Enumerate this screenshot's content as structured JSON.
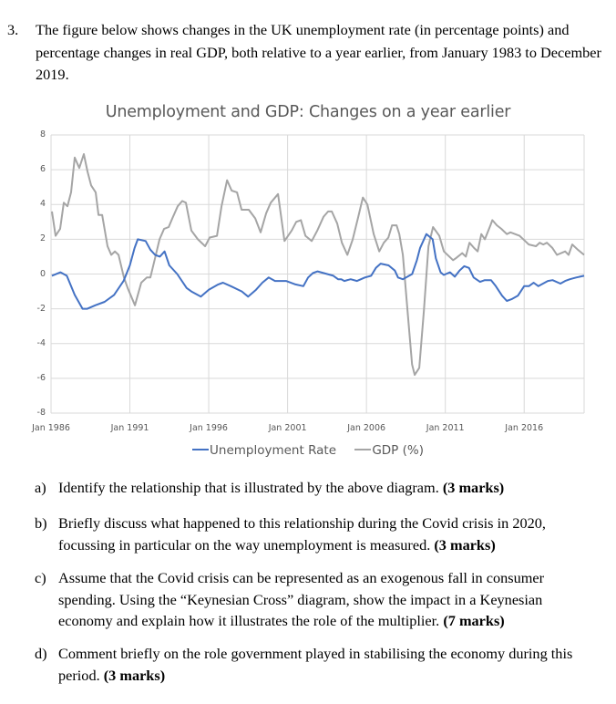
{
  "question": {
    "number": "3.",
    "intro": "The figure below shows changes in the UK unemployment rate (in percentage points) and percentage changes in real GDP, both relative to a year earlier, from January 1983 to December 2019."
  },
  "subquestions": [
    {
      "label": "a)",
      "text": "Identify the relationship that is illustrated by the above diagram.",
      "marks": "(3 marks)"
    },
    {
      "label": "b)",
      "text": "Briefly discuss what happened to this relationship during the Covid crisis in 2020, focussing in particular on the way unemployment is measured.",
      "marks": "(3 marks)"
    },
    {
      "label": "c)",
      "text": "Assume that the Covid crisis can be represented as an exogenous fall in consumer spending. Using the “Keynesian Cross” diagram, show the impact in a Keynesian economy and explain how it illustrates the role of the multiplier.",
      "marks": "(7 marks)"
    },
    {
      "label": "d)",
      "text": "Comment briefly on the role government played in stabilising the economy during this period.",
      "marks": "(3 marks)"
    }
  ],
  "chart_data": {
    "type": "line",
    "title": "Unemployment and GDP: Changes on a year earlier",
    "xlabel": "",
    "ylabel": "",
    "xlim": [
      1986.0,
      2019.8
    ],
    "ylim": [
      -8,
      8
    ],
    "yticks": [
      8,
      6,
      4,
      2,
      0,
      -2,
      -4,
      -6,
      -8
    ],
    "xticks": [
      {
        "value": 1986,
        "label": "Jan 1986"
      },
      {
        "value": 1991,
        "label": "Jan 1991"
      },
      {
        "value": 1996,
        "label": "Jan 1996"
      },
      {
        "value": 2001,
        "label": "Jan 2001"
      },
      {
        "value": 2006,
        "label": "Jan 2006"
      },
      {
        "value": 2011,
        "label": "Jan 2011"
      },
      {
        "value": 2016,
        "label": "Jan 2016"
      }
    ],
    "grid": true,
    "legend_position": "bottom",
    "series": [
      {
        "name": "Unemployment Rate",
        "color": "#4472C4",
        "x": [
          1986.05,
          1986.6,
          1987.0,
          1987.5,
          1988.0,
          1988.3,
          1988.8,
          1989.4,
          1990.0,
          1990.6,
          1991.0,
          1991.3,
          1991.5,
          1992.0,
          1992.3,
          1992.6,
          1992.9,
          1993.2,
          1993.5,
          1994.0,
          1994.6,
          1994.9,
          1995.5,
          1996.0,
          1996.6,
          1996.9,
          1997.4,
          1998.1,
          1998.5,
          1999.0,
          1999.4,
          1999.8,
          2000.2,
          2000.9,
          2001.5,
          2002.0,
          2002.3,
          2002.6,
          2002.9,
          2003.3,
          2003.9,
          2004.2,
          2004.4,
          2004.6,
          2005.0,
          2005.4,
          2005.9,
          2006.3,
          2006.6,
          2006.9,
          2007.4,
          2007.8,
          2008.0,
          2008.3,
          2008.6,
          2008.9,
          2009.2,
          2009.4,
          2009.8,
          2010.2,
          2010.4,
          2010.7,
          2010.9,
          2011.3,
          2011.6,
          2011.9,
          2012.2,
          2012.5,
          2012.8,
          2013.2,
          2013.5,
          2013.9,
          2014.2,
          2014.6,
          2014.9,
          2015.2,
          2015.6,
          2016.0,
          2016.3,
          2016.6,
          2016.9,
          2017.5,
          2017.8,
          2018.3,
          2018.6,
          2018.9,
          2019.3,
          2019.8
        ],
        "values": [
          -0.1,
          0.1,
          -0.1,
          -1.2,
          -2.0,
          -2.0,
          -1.8,
          -1.6,
          -1.2,
          -0.4,
          0.5,
          1.5,
          2.0,
          1.9,
          1.4,
          1.1,
          1.0,
          1.3,
          0.5,
          0.0,
          -0.8,
          -1.0,
          -1.3,
          -0.9,
          -0.6,
          -0.5,
          -0.7,
          -1.0,
          -1.3,
          -0.9,
          -0.5,
          -0.2,
          -0.4,
          -0.4,
          -0.6,
          -0.7,
          -0.2,
          0.05,
          0.15,
          0.05,
          -0.1,
          -0.3,
          -0.3,
          -0.4,
          -0.3,
          -0.4,
          -0.2,
          -0.1,
          0.35,
          0.6,
          0.5,
          0.2,
          -0.2,
          -0.3,
          -0.15,
          0.0,
          0.8,
          1.5,
          2.3,
          2.0,
          0.9,
          0.1,
          -0.05,
          0.1,
          -0.15,
          0.2,
          0.45,
          0.35,
          -0.2,
          -0.45,
          -0.35,
          -0.35,
          -0.7,
          -1.25,
          -1.55,
          -1.45,
          -1.25,
          -0.7,
          -0.7,
          -0.5,
          -0.7,
          -0.4,
          -0.35,
          -0.55,
          -0.4,
          -0.3,
          -0.2,
          -0.1
        ]
      },
      {
        "name": "GDP (%)",
        "color": "#A5A5A5",
        "x": [
          1986.06,
          1986.29,
          1986.58,
          1986.81,
          1987.04,
          1987.27,
          1987.5,
          1987.79,
          1988.08,
          1988.31,
          1988.54,
          1988.83,
          1989.01,
          1989.24,
          1989.58,
          1989.82,
          1990.05,
          1990.28,
          1990.62,
          1990.86,
          1991.32,
          1991.72,
          1992.07,
          1992.3,
          1992.59,
          1992.88,
          1993.17,
          1993.46,
          1993.69,
          1994.03,
          1994.32,
          1994.55,
          1994.9,
          1995.31,
          1995.77,
          1996.06,
          1996.52,
          1996.81,
          1997.16,
          1997.45,
          1997.79,
          1998.08,
          1998.54,
          1998.95,
          1999.29,
          1999.64,
          1999.93,
          2000.39,
          2000.8,
          2001.26,
          2001.55,
          2001.84,
          2002.13,
          2002.53,
          2002.88,
          2003.28,
          2003.57,
          2003.8,
          2004.15,
          2004.44,
          2004.79,
          2005.13,
          2005.48,
          2005.77,
          2006.06,
          2006.46,
          2006.81,
          2007.1,
          2007.39,
          2007.62,
          2007.91,
          2008.08,
          2008.31,
          2008.6,
          2008.89,
          2009.06,
          2009.35,
          2009.64,
          2009.93,
          2010.22,
          2010.62,
          2010.91,
          2011.49,
          2011.66,
          2012.07,
          2012.3,
          2012.53,
          2012.82,
          2013.05,
          2013.28,
          2013.51,
          2013.86,
          2013.98,
          2014.27,
          2014.55,
          2014.9,
          2015.13,
          2015.42,
          2015.71,
          2016.06,
          2016.29,
          2016.75,
          2016.98,
          2017.21,
          2017.44,
          2017.79,
          2018.08,
          2018.6,
          2018.82,
          2019.05,
          2019.4,
          2019.8
        ],
        "values": [
          3.6,
          2.2,
          2.6,
          4.1,
          3.9,
          4.7,
          6.7,
          6.1,
          6.9,
          5.9,
          5.1,
          4.7,
          3.4,
          3.4,
          1.6,
          1.1,
          1.3,
          1.1,
          -0.2,
          -0.8,
          -1.8,
          -0.5,
          -0.2,
          -0.2,
          0.9,
          2.0,
          2.6,
          2.7,
          3.2,
          3.9,
          4.2,
          4.1,
          2.5,
          2.0,
          1.6,
          2.1,
          2.2,
          3.9,
          5.4,
          4.8,
          4.7,
          3.7,
          3.7,
          3.2,
          2.4,
          3.5,
          4.1,
          4.6,
          1.9,
          2.5,
          3.0,
          3.1,
          2.2,
          1.9,
          2.5,
          3.3,
          3.6,
          3.6,
          2.9,
          1.8,
          1.1,
          2.0,
          3.3,
          4.4,
          4.0,
          2.3,
          1.3,
          1.8,
          2.1,
          2.8,
          2.8,
          2.3,
          1.1,
          -2.1,
          -5.2,
          -5.8,
          -5.4,
          -2.1,
          1.6,
          2.7,
          2.2,
          1.3,
          0.8,
          0.9,
          1.2,
          1.0,
          1.8,
          1.5,
          1.3,
          2.3,
          2.0,
          2.8,
          3.1,
          2.8,
          2.6,
          2.3,
          2.4,
          2.3,
          2.2,
          1.9,
          1.7,
          1.6,
          1.8,
          1.7,
          1.8,
          1.5,
          1.1,
          1.3,
          1.1,
          1.7,
          1.4,
          1.1
        ]
      }
    ]
  }
}
